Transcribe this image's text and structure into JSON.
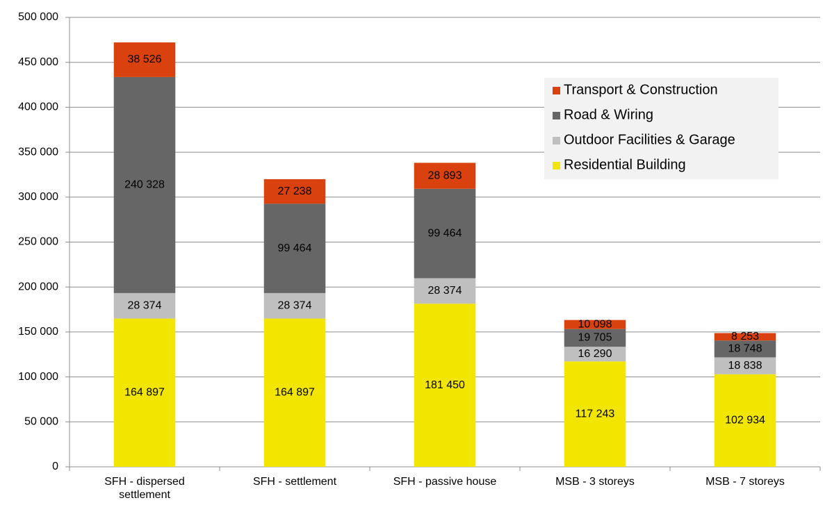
{
  "chart_data": {
    "type": "bar",
    "stacked": true,
    "categories": [
      "SFH - dispersed settlement",
      "SFH - settlement",
      "SFH - passive house",
      "MSB - 3 storeys",
      "MSB - 7 storeys"
    ],
    "series": [
      {
        "name": "Residential Building",
        "color": "#f2e600",
        "values": [
          164897,
          164897,
          181450,
          117243,
          102934
        ],
        "value_labels": [
          "164 897",
          "164 897",
          "181 450",
          "117 243",
          "102 934"
        ]
      },
      {
        "name": "Outdoor Facilities & Garage",
        "color": "#bfbfbf",
        "values": [
          28374,
          28374,
          28374,
          16290,
          18838
        ],
        "value_labels": [
          "28 374",
          "28 374",
          "28 374",
          "16 290",
          "18 838"
        ]
      },
      {
        "name": "Road & Wiring",
        "color": "#666666",
        "values": [
          240328,
          99464,
          99464,
          19705,
          18748
        ],
        "value_labels": [
          "240 328",
          "99 464",
          "99 464",
          "19 705",
          "18 748"
        ]
      },
      {
        "name": "Transport & Construction",
        "color": "#d9420f",
        "values": [
          38526,
          27238,
          28893,
          10098,
          8253
        ],
        "value_labels": [
          "38 526",
          "27 238",
          "28 893",
          "10 098",
          "8 253"
        ]
      }
    ],
    "ylim": [
      0,
      500000
    ],
    "yticks": [
      0,
      {
        "value": 50000,
        "label": "50 000"
      },
      {
        "value": 100000,
        "label": "100 000"
      },
      {
        "value": 150000,
        "label": "150 000"
      },
      {
        "value": 200000,
        "label": "200 000"
      },
      {
        "value": 250000,
        "label": "250 000"
      },
      {
        "value": 300000,
        "label": "300 000"
      },
      {
        "value": 350000,
        "label": "350 000"
      },
      {
        "value": 400000,
        "label": "400 000"
      },
      {
        "value": 450000,
        "label": "450 000"
      },
      {
        "value": 500000,
        "label": "500 000"
      }
    ],
    "grid": true,
    "legend": "upper right"
  }
}
